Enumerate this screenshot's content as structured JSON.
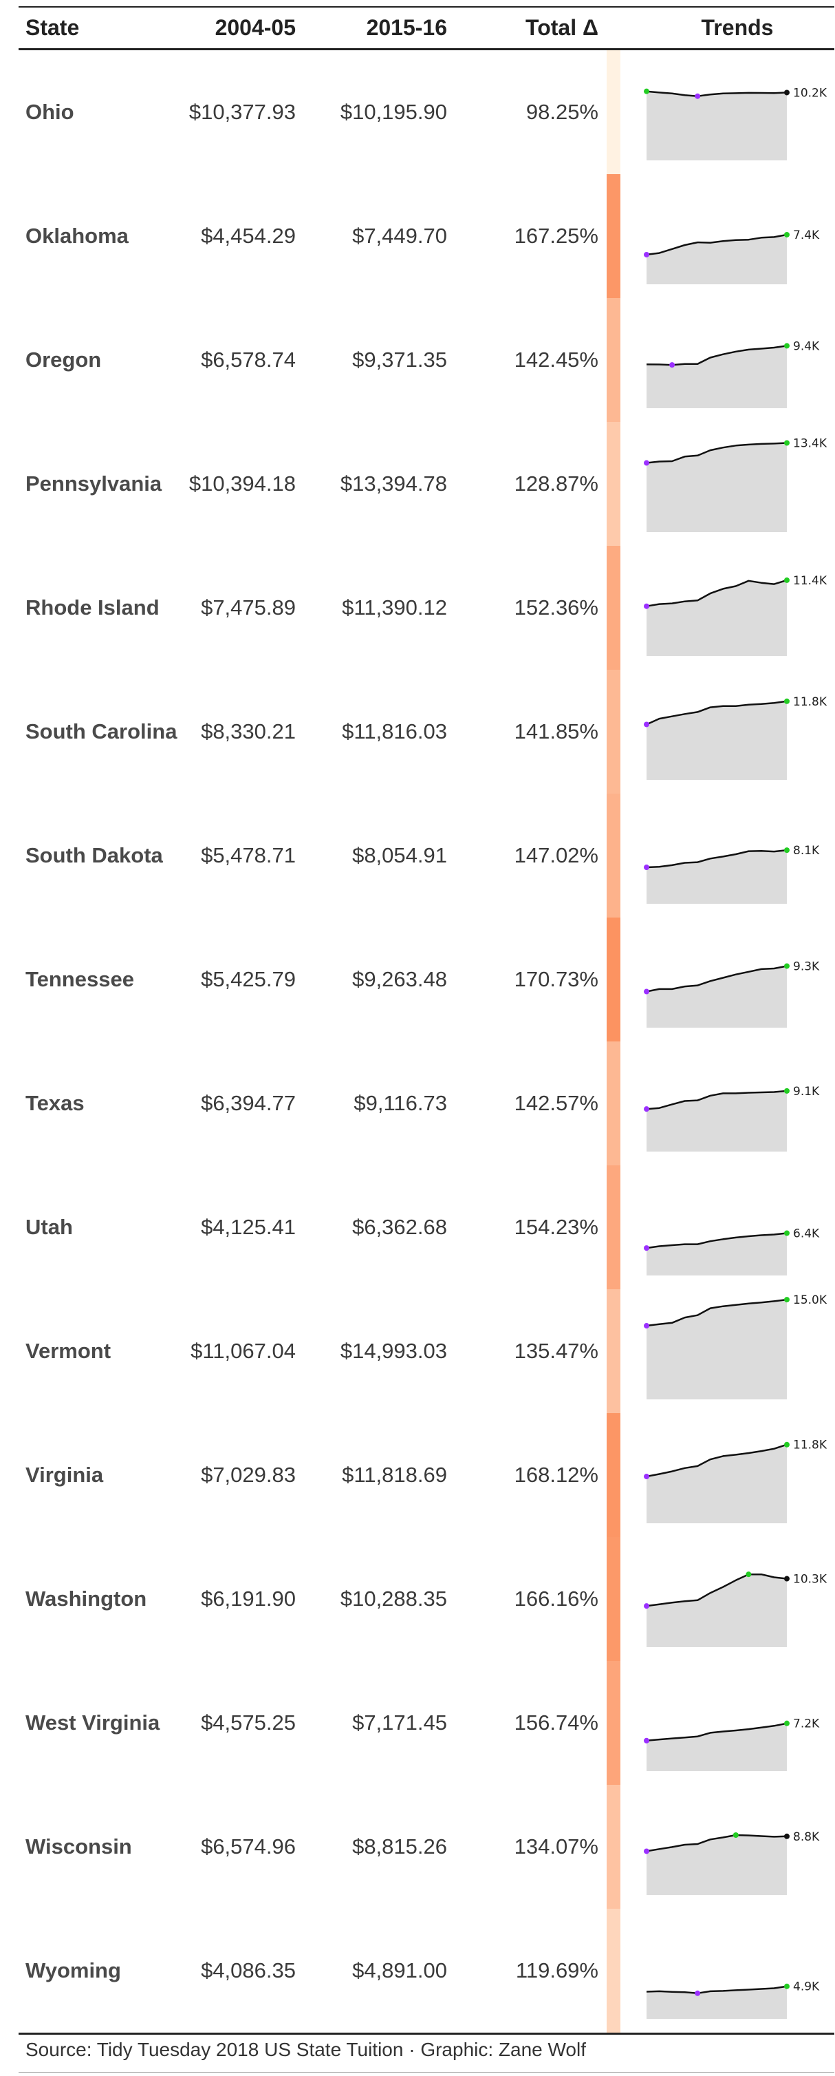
{
  "headers": {
    "state": "State",
    "v2004": "2004-05",
    "v2015": "2015-16",
    "total": "Total Δ",
    "trends": "Trends"
  },
  "source": "Source: Tidy Tuesday 2018 US State Tuition · Graphic: Zane Wolf",
  "colors": {
    "text": "#333333",
    "state_text": "#4a4a4a",
    "area_fill": "#dcdcdc",
    "line": "#111111",
    "min_point": "#9b30ff",
    "max_point": "#22cc22",
    "last_point": "#111111"
  },
  "chart_data": {
    "type": "table",
    "columns": [
      "State",
      "2004-05",
      "2015-16",
      "Total Δ",
      "Trends"
    ],
    "ylim_sparkline": [
      0,
      15000
    ],
    "rows": [
      {
        "state": "Ohio",
        "v2004": "$10,377.93",
        "v2015": "$10,195.90",
        "pct": "98.25%",
        "pct_value": 98.25,
        "end_label": "10.2K",
        "trend": [
          10378,
          10200,
          10050,
          9800,
          9650,
          9900,
          10050,
          10100,
          10150,
          10140,
          10120,
          10196
        ]
      },
      {
        "state": "Oklahoma",
        "v2004": "$4,454.29",
        "v2015": "$7,449.70",
        "pct": "167.25%",
        "pct_value": 167.25,
        "end_label": "7.4K",
        "trend": [
          4454,
          4700,
          5300,
          5900,
          6300,
          6250,
          6500,
          6650,
          6700,
          7000,
          7100,
          7450
        ]
      },
      {
        "state": "Oregon",
        "v2004": "$6,578.74",
        "v2015": "$9,371.35",
        "pct": "142.45%",
        "pct_value": 142.45,
        "end_label": "9.4K",
        "trend": [
          6579,
          6570,
          6500,
          6650,
          6650,
          7600,
          8100,
          8500,
          8800,
          8950,
          9100,
          9371
        ]
      },
      {
        "state": "Pennsylvania",
        "v2004": "$10,394.18",
        "v2015": "$13,394.78",
        "pct": "128.87%",
        "pct_value": 128.87,
        "end_label": "13.4K",
        "trend": [
          10394,
          10600,
          10650,
          11350,
          11500,
          12300,
          12700,
          13000,
          13150,
          13250,
          13300,
          13395
        ]
      },
      {
        "state": "Rhode Island",
        "v2004": "$7,475.89",
        "v2015": "$11,390.12",
        "pct": "152.36%",
        "pct_value": 152.36,
        "end_label": "11.4K",
        "trend": [
          7476,
          7800,
          7900,
          8200,
          8350,
          9400,
          10100,
          10500,
          11300,
          11000,
          10800,
          11390
        ]
      },
      {
        "state": "South Carolina",
        "v2004": "$8,330.21",
        "v2015": "$11,816.03",
        "pct": "141.85%",
        "pct_value": 141.85,
        "end_label": "11.8K",
        "trend": [
          8330,
          9200,
          9550,
          9900,
          10200,
          10900,
          11100,
          11100,
          11300,
          11400,
          11550,
          11816
        ]
      },
      {
        "state": "South Dakota",
        "v2004": "$5,478.71",
        "v2015": "$8,054.91",
        "pct": "147.02%",
        "pct_value": 147.02,
        "end_label": "8.1K",
        "trend": [
          5479,
          5550,
          5800,
          6150,
          6250,
          6800,
          7100,
          7450,
          7900,
          7950,
          7850,
          8055
        ]
      },
      {
        "state": "Tennessee",
        "v2004": "$5,425.79",
        "v2015": "$9,263.48",
        "pct": "170.73%",
        "pct_value": 170.73,
        "end_label": "9.3K",
        "trend": [
          5426,
          5800,
          5800,
          6200,
          6350,
          7000,
          7500,
          8000,
          8400,
          8800,
          8900,
          9263
        ]
      },
      {
        "state": "Texas",
        "v2004": "$6,394.77",
        "v2015": "$9,116.73",
        "pct": "142.57%",
        "pct_value": 142.57,
        "end_label": "9.1K",
        "trend": [
          6395,
          6550,
          7100,
          7600,
          7700,
          8400,
          8750,
          8750,
          8850,
          8900,
          8950,
          9117
        ]
      },
      {
        "state": "Utah",
        "v2004": "$4,125.41",
        "v2015": "$6,362.68",
        "pct": "154.23%",
        "pct_value": 154.23,
        "end_label": "6.4K",
        "trend": [
          4125,
          4400,
          4550,
          4700,
          4700,
          5150,
          5450,
          5700,
          5900,
          6050,
          6150,
          6363
        ]
      },
      {
        "state": "Vermont",
        "v2004": "$11,067.04",
        "v2015": "$14,993.03",
        "pct": "135.47%",
        "pct_value": 135.47,
        "end_label": "15.0K",
        "trend": [
          11067,
          11300,
          11500,
          12300,
          12650,
          13700,
          14000,
          14200,
          14400,
          14550,
          14750,
          14993
        ]
      },
      {
        "state": "Virginia",
        "v2004": "$7,029.83",
        "v2015": "$11,818.69",
        "pct": "168.12%",
        "pct_value": 168.12,
        "end_label": "11.8K",
        "trend": [
          7030,
          7400,
          7800,
          8300,
          8600,
          9600,
          10100,
          10300,
          10550,
          10850,
          11200,
          11819
        ]
      },
      {
        "state": "Washington",
        "v2004": "$6,191.90",
        "v2015": "$10,288.35",
        "pct": "166.16%",
        "pct_value": 166.16,
        "end_label": "10.3K",
        "trend": [
          6192,
          6450,
          6700,
          6900,
          7050,
          8150,
          9050,
          10050,
          10950,
          10950,
          10500,
          10288
        ]
      },
      {
        "state": "West Virginia",
        "v2004": "$4,575.25",
        "v2015": "$7,171.45",
        "pct": "156.74%",
        "pct_value": 156.74,
        "end_label": "7.2K",
        "trend": [
          4575,
          4750,
          4900,
          5050,
          5200,
          5750,
          5950,
          6100,
          6300,
          6550,
          6800,
          7171
        ]
      },
      {
        "state": "Wisconsin",
        "v2004": "$6,574.96",
        "v2015": "$8,815.26",
        "pct": "134.07%",
        "pct_value": 134.07,
        "end_label": "8.8K",
        "trend": [
          6575,
          6900,
          7200,
          7550,
          7650,
          8350,
          8650,
          9000,
          8950,
          8850,
          8750,
          8815
        ]
      },
      {
        "state": "Wyoming",
        "v2004": "$4,086.35",
        "v2015": "$4,891.00",
        "pct": "119.69%",
        "pct_value": 119.69,
        "end_label": "4.9K",
        "trend": [
          4086,
          4150,
          4050,
          4000,
          3850,
          4150,
          4200,
          4300,
          4400,
          4500,
          4600,
          4891
        ]
      }
    ]
  }
}
